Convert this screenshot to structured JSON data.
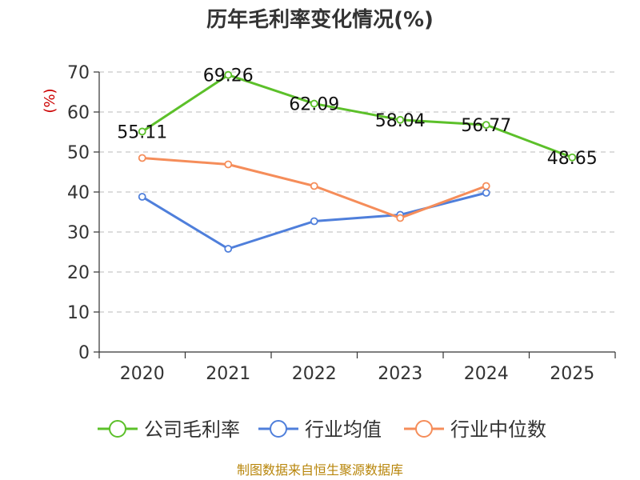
{
  "chart_data": {
    "type": "line",
    "title": "历年毛利率变化情况(%)",
    "ylabel": "(%)",
    "xlabel": "",
    "categories": [
      "2020",
      "2021",
      "2022",
      "2023",
      "2024",
      "2025"
    ],
    "ylim": [
      0,
      70
    ],
    "yticks": [
      0,
      10,
      20,
      30,
      40,
      50,
      60,
      70
    ],
    "grid": true,
    "legend_position": "bottom",
    "series": [
      {
        "name": "公司毛利率",
        "color": "#5cc02a",
        "labels": true,
        "values": [
          55.11,
          69.26,
          62.09,
          58.04,
          56.77,
          48.65
        ]
      },
      {
        "name": "行业均值",
        "color": "#4f7fdb",
        "labels": false,
        "values": [
          38.8,
          25.8,
          32.7,
          34.3,
          39.8,
          null
        ]
      },
      {
        "name": "行业中位数",
        "color": "#f58d5a",
        "labels": false,
        "values": [
          48.5,
          46.9,
          41.5,
          33.5,
          41.5,
          null
        ]
      }
    ],
    "source": "制图数据来自恒生聚源数据库"
  }
}
